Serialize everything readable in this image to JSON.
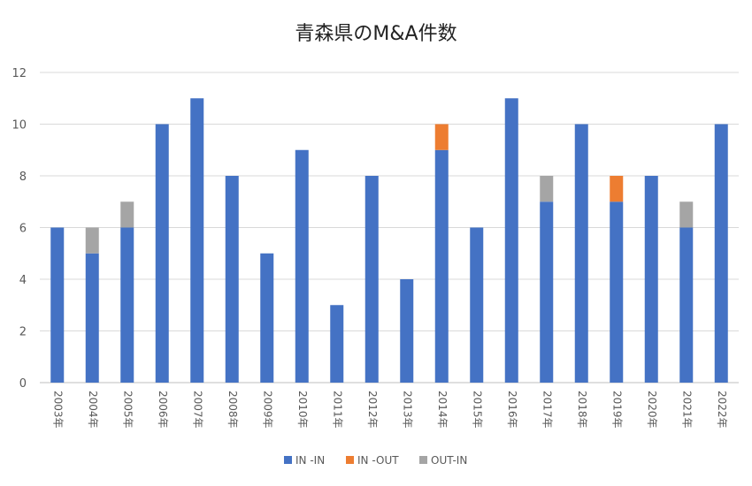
{
  "chart_data": {
    "type": "bar",
    "stacked": true,
    "title": "青森県のM&A件数",
    "categories": [
      "2003年",
      "2004年",
      "2005年",
      "2006年",
      "2007年",
      "2008年",
      "2009年",
      "2010年",
      "2011年",
      "2012年",
      "2013年",
      "2014年",
      "2015年",
      "2016年",
      "2017年",
      "2018年",
      "2019年",
      "2020年",
      "2021年",
      "2022年"
    ],
    "series": [
      {
        "name": "IN -IN",
        "color": "#4472C4",
        "values": [
          6,
          5,
          6,
          10,
          11,
          8,
          5,
          9,
          3,
          8,
          4,
          9,
          6,
          11,
          7,
          10,
          7,
          8,
          6,
          10
        ]
      },
      {
        "name": "IN -OUT",
        "color": "#ED7D31",
        "values": [
          0,
          0,
          0,
          0,
          0,
          0,
          0,
          0,
          0,
          0,
          0,
          1,
          0,
          0,
          0,
          0,
          1,
          0,
          0,
          0
        ]
      },
      {
        "name": "OUT-IN",
        "color": "#A5A5A5",
        "values": [
          0,
          1,
          1,
          0,
          0,
          0,
          0,
          0,
          0,
          0,
          0,
          0,
          0,
          0,
          1,
          0,
          0,
          0,
          1,
          0
        ]
      }
    ],
    "ylim": [
      0,
      12
    ],
    "yticks": [
      0,
      2,
      4,
      6,
      8,
      10,
      12
    ],
    "grid": true,
    "legend_position": "bottom"
  }
}
